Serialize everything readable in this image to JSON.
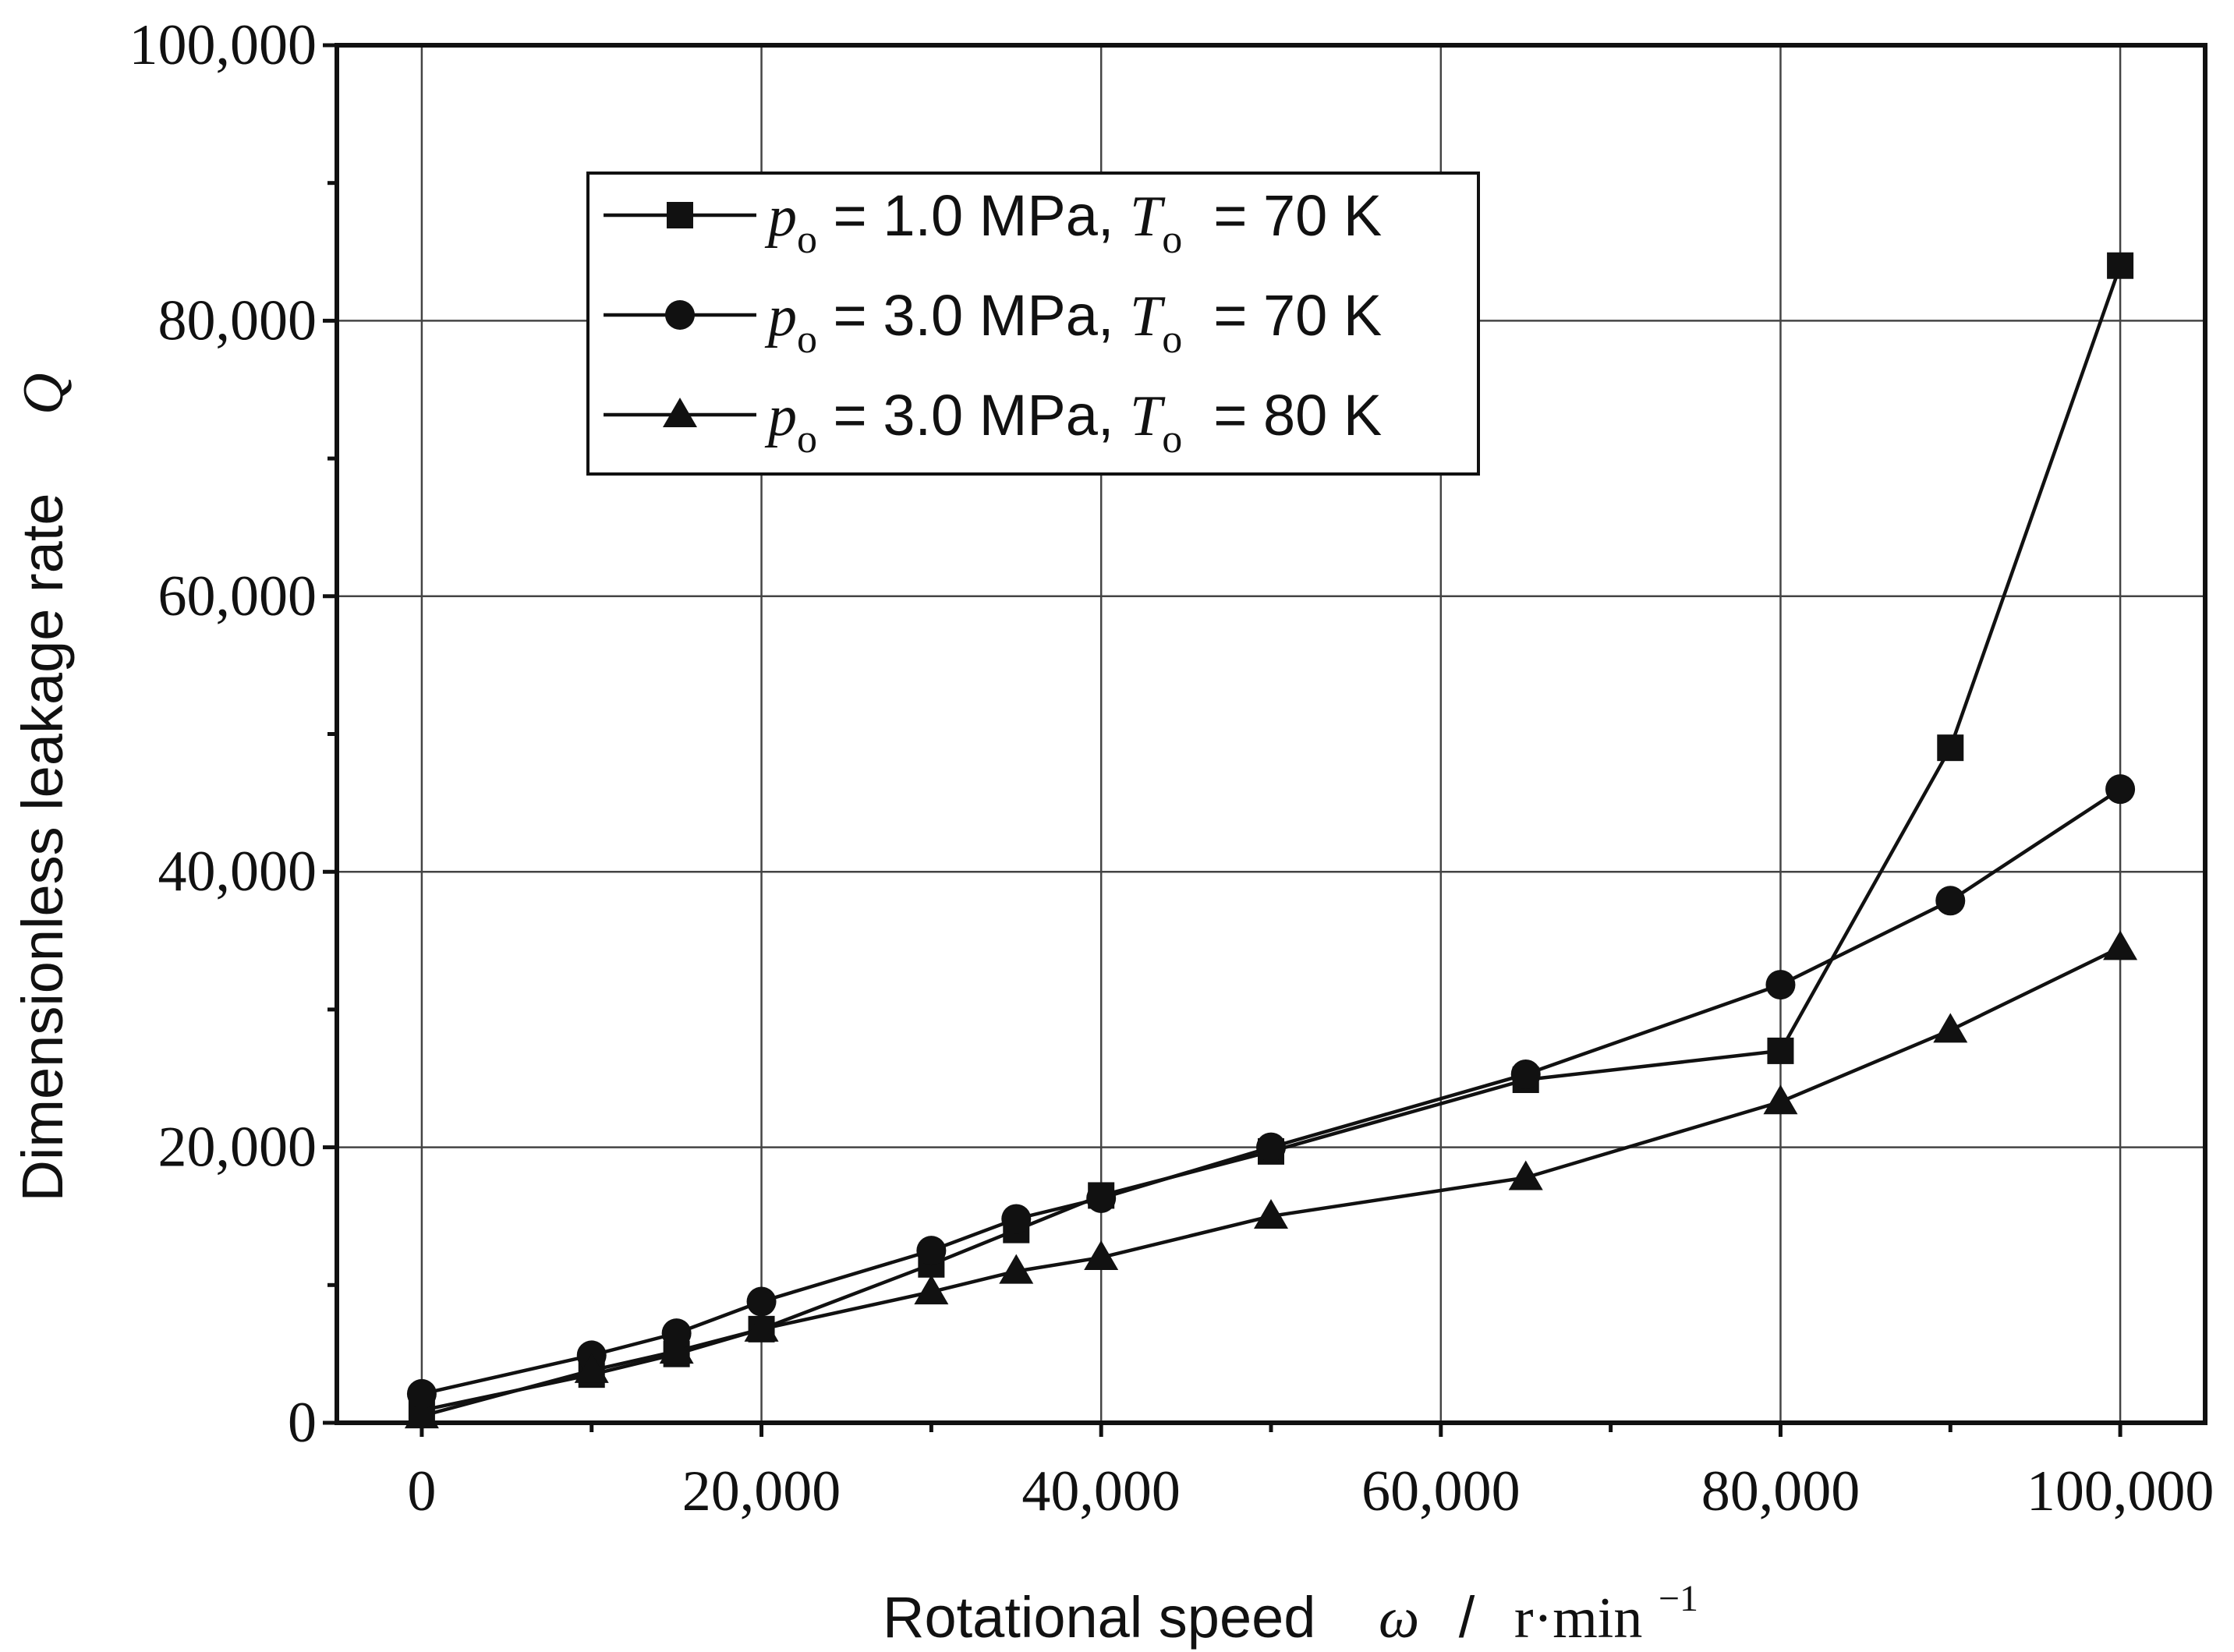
{
  "chart_data": {
    "type": "line",
    "title": "",
    "xlabel": "Rotational speed",
    "xlabel_symbol": "ω",
    "xlabel_sep": "/",
    "xlabel_unit": "r·min",
    "xlabel_unit_exp": "−1",
    "ylabel": "Dimensionless leakage rate",
    "ylabel_symbol": "Q",
    "xlim": [
      -5000,
      105000
    ],
    "ylim": [
      0,
      100000
    ],
    "xticks": [
      0,
      20000,
      40000,
      60000,
      80000,
      100000
    ],
    "xtick_labels": [
      "0",
      "20,000",
      "40,000",
      "60,000",
      "80,000",
      "100,000"
    ],
    "yticks": [
      0,
      20000,
      40000,
      60000,
      80000,
      100000
    ],
    "ytick_labels": [
      "0",
      "20,000",
      "40,000",
      "60,000",
      "80,000",
      "100,000"
    ],
    "grid": true,
    "legend_position": "top-left",
    "series": [
      {
        "name": "po = 1.0 MPa, To = 70 K",
        "legend": {
          "p": "p",
          "p_sub": "o",
          "p_val": " = 1.0 MPa, ",
          "t": "T",
          "t_sub": "o",
          "t_val": "= 70 K"
        },
        "marker": "square",
        "x": [
          0,
          10000,
          15000,
          20000,
          30000,
          35000,
          40000,
          50000,
          65000,
          80000,
          90000,
          100000
        ],
        "y": [
          900,
          3500,
          5000,
          6800,
          11500,
          14000,
          16500,
          19700,
          24900,
          27000,
          49000,
          84000
        ]
      },
      {
        "name": "po = 3.0 MPa, To = 70 K",
        "legend": {
          "p": "p",
          "p_sub": "o",
          "p_val": " = 3.0 MPa, ",
          "t": "T",
          "t_sub": "o",
          "t_val": "= 70 K"
        },
        "marker": "circle",
        "x": [
          0,
          10000,
          15000,
          20000,
          30000,
          35000,
          40000,
          50000,
          65000,
          80000,
          90000,
          100000
        ],
        "y": [
          2100,
          4900,
          6500,
          8800,
          12500,
          14800,
          16300,
          20000,
          25300,
          31800,
          37900,
          46000
        ]
      },
      {
        "name": "po = 3.0 MPa, To = 80 K",
        "legend": {
          "p": "p",
          "p_sub": "o",
          "p_val": " = 3.0 MPa, ",
          "t": "T",
          "t_sub": "o",
          "t_val": "= 80 K"
        },
        "marker": "triangle",
        "x": [
          0,
          10000,
          15000,
          20000,
          30000,
          35000,
          40000,
          50000,
          65000,
          80000,
          90000,
          100000
        ],
        "y": [
          500,
          3800,
          5200,
          6800,
          9500,
          11000,
          12000,
          15000,
          17800,
          23300,
          28500,
          34500
        ]
      }
    ]
  }
}
